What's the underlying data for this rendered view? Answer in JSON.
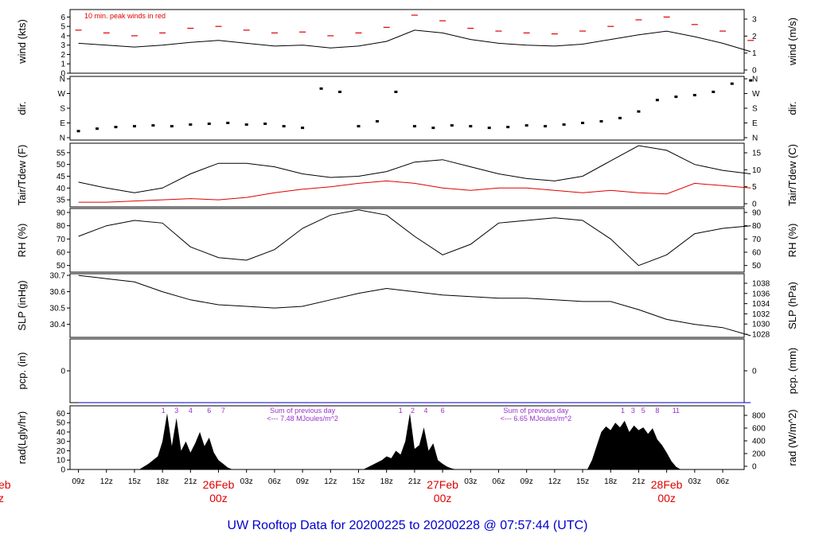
{
  "footer": "UW Rooftop Data for 20200225  to  20200228 @ 07:57:44  (UTC)",
  "colors": {
    "red": "#e00000",
    "blue": "#0000cc",
    "purple": "#9933cc",
    "black": "#000000"
  },
  "chart_data": [
    {
      "id": "wind",
      "type": "line",
      "ylabel_left": "wind (kts)",
      "ylabel_right": "wind (m/s)",
      "left_ticks": [
        "0",
        "1",
        "2",
        "3",
        "4",
        "5",
        "6"
      ],
      "right_ticks": [
        "0",
        "1",
        "2",
        "3"
      ],
      "ylim": [
        0,
        6.8
      ],
      "annotation": "10 min. peak winds in red",
      "series": [
        {
          "name": "wind speed",
          "color": "#000000",
          "x": [
            0,
            3,
            6,
            9,
            12,
            15,
            18,
            21,
            24,
            27,
            30,
            33,
            36,
            39,
            42,
            45,
            48,
            51,
            54,
            57,
            60,
            63,
            66,
            69,
            72
          ],
          "values": [
            3.2,
            3.0,
            2.8,
            3.0,
            3.3,
            3.5,
            3.2,
            2.9,
            3.0,
            2.7,
            2.9,
            3.4,
            4.6,
            4.3,
            3.6,
            3.2,
            3.0,
            2.9,
            3.1,
            3.6,
            4.1,
            4.5,
            3.9,
            3.2,
            2.3
          ]
        },
        {
          "name": "10 min. peak winds",
          "color": "#e00000",
          "x": [
            0,
            3,
            6,
            9,
            12,
            15,
            18,
            21,
            24,
            27,
            30,
            33,
            36,
            39,
            42,
            45,
            48,
            51,
            54,
            57,
            60,
            63,
            66,
            69,
            72
          ],
          "values": [
            4.6,
            4.3,
            4.0,
            4.3,
            4.8,
            5.0,
            4.6,
            4.3,
            4.4,
            4.0,
            4.3,
            4.9,
            6.2,
            5.6,
            4.8,
            4.5,
            4.3,
            4.2,
            4.5,
            5.0,
            5.7,
            6.0,
            5.2,
            4.5,
            3.5
          ]
        }
      ]
    },
    {
      "id": "dir",
      "type": "scatter",
      "ylabel": "dir.",
      "left_ticks": [
        "N",
        "E",
        "S",
        "W",
        "N"
      ],
      "right_ticks": [
        "N",
        "E",
        "S",
        "W",
        "N"
      ],
      "ylim": [
        0,
        360
      ],
      "x": [
        0,
        2,
        4,
        6,
        8,
        10,
        12,
        14,
        16,
        18,
        20,
        22,
        24,
        26,
        28,
        30,
        32,
        34,
        36,
        38,
        40,
        42,
        44,
        46,
        48,
        50,
        52,
        54,
        56,
        58,
        60,
        62,
        64,
        66,
        68,
        70,
        72
      ],
      "values": [
        40,
        55,
        65,
        70,
        75,
        70,
        80,
        85,
        90,
        80,
        85,
        70,
        60,
        300,
        280,
        70,
        100,
        280,
        70,
        60,
        75,
        70,
        60,
        65,
        75,
        70,
        80,
        90,
        100,
        120,
        160,
        230,
        250,
        260,
        280,
        330,
        350
      ]
    },
    {
      "id": "temp",
      "type": "line",
      "ylabel_left": "Tair/Tdew (F)",
      "ylabel_right": "Tair/Tdew (C)",
      "left_ticks": [
        "35",
        "40",
        "45",
        "50",
        "55"
      ],
      "right_ticks": [
        "0",
        "5",
        "10",
        "15"
      ],
      "ylim": [
        32,
        59
      ],
      "series": [
        {
          "name": "Tair",
          "color": "#000000",
          "x": [
            0,
            3,
            6,
            9,
            12,
            15,
            18,
            21,
            24,
            27,
            30,
            33,
            36,
            39,
            42,
            45,
            48,
            51,
            54,
            57,
            60,
            63,
            66,
            69,
            72
          ],
          "values": [
            42.5,
            40,
            38,
            40,
            46,
            50.5,
            50.5,
            49,
            46,
            44.5,
            45,
            47,
            51,
            52,
            49,
            46,
            44,
            43,
            45,
            51.5,
            58,
            56,
            50,
            47.5,
            46
          ]
        },
        {
          "name": "Tdew",
          "color": "#e00000",
          "x": [
            0,
            3,
            6,
            9,
            12,
            15,
            18,
            21,
            24,
            27,
            30,
            33,
            36,
            39,
            42,
            45,
            48,
            51,
            54,
            57,
            60,
            63,
            66,
            69,
            72
          ],
          "values": [
            34,
            34,
            34.5,
            35,
            35.5,
            35,
            36,
            38,
            39.5,
            40.5,
            42,
            43,
            42,
            40,
            39,
            40,
            40,
            39,
            38,
            39,
            38,
            37.5,
            42,
            41,
            40
          ]
        }
      ]
    },
    {
      "id": "rh",
      "type": "line",
      "ylabel_left": "RH (%)",
      "ylabel_right": "RH (%)",
      "left_ticks": [
        "50",
        "60",
        "70",
        "80",
        "90"
      ],
      "right_ticks": [
        "50",
        "60",
        "70",
        "80",
        "90"
      ],
      "ylim": [
        45,
        93
      ],
      "series": [
        {
          "name": "RH",
          "color": "#000000",
          "x": [
            0,
            3,
            6,
            9,
            12,
            15,
            18,
            21,
            24,
            27,
            30,
            33,
            36,
            39,
            42,
            45,
            48,
            51,
            54,
            57,
            60,
            63,
            66,
            69,
            72
          ],
          "values": [
            72,
            80,
            84,
            82,
            64,
            56,
            54,
            62,
            78,
            88,
            92,
            88,
            72,
            58,
            66,
            82,
            84,
            86,
            84,
            70,
            50,
            58,
            74,
            78,
            80
          ]
        }
      ]
    },
    {
      "id": "slp",
      "type": "line",
      "ylabel_left": "SLP (inHg)",
      "ylabel_right": "SLP (hPa)",
      "left_ticks": [
        "30.4",
        "30.5",
        "30.6",
        "30.7"
      ],
      "right_ticks": [
        "1028",
        "1030",
        "1032",
        "1034",
        "1036",
        "1038"
      ],
      "ylim": [
        30.32,
        30.71
      ],
      "series": [
        {
          "name": "SLP",
          "color": "#000000",
          "x": [
            0,
            3,
            6,
            9,
            12,
            15,
            18,
            21,
            24,
            27,
            30,
            33,
            36,
            39,
            42,
            45,
            48,
            51,
            54,
            57,
            60,
            63,
            66,
            69,
            72
          ],
          "values": [
            30.7,
            30.68,
            30.66,
            30.6,
            30.55,
            30.52,
            30.51,
            30.5,
            30.51,
            30.55,
            30.59,
            30.62,
            30.6,
            30.58,
            30.57,
            30.56,
            30.56,
            30.55,
            30.54,
            30.54,
            30.49,
            30.43,
            30.4,
            30.38,
            30.33
          ]
        }
      ]
    },
    {
      "id": "pcp",
      "type": "line",
      "ylabel_left": "pcp. (in)",
      "ylabel_right": "pcp. (mm)",
      "left_ticks": [
        "0"
      ],
      "right_ticks": [
        "0"
      ],
      "ylim": [
        0,
        1
      ],
      "series": [
        {
          "name": "precip",
          "color": "#0000cc",
          "x": [
            0,
            72
          ],
          "values": [
            0,
            0
          ]
        }
      ]
    },
    {
      "id": "rad",
      "type": "area",
      "ylabel_left": "rad(Lgly/hr)",
      "ylabel_right": "rad (W/m^2)",
      "left_ticks": [
        "0",
        "10",
        "20",
        "30",
        "40",
        "50",
        "60"
      ],
      "right_ticks": [
        "0",
        "200",
        "400",
        "600",
        "800"
      ],
      "ylim": [
        0,
        68
      ],
      "x": [
        6.5,
        7.5,
        8.5,
        9,
        9.5,
        10,
        10.5,
        11,
        11.5,
        12,
        12.5,
        13,
        13.5,
        14,
        14.5,
        15,
        15.5,
        16,
        16.5,
        30.5,
        31.5,
        32.5,
        33,
        33.5,
        34,
        34.5,
        35,
        35.5,
        36,
        36.5,
        37,
        37.5,
        38,
        38.5,
        39,
        39.5,
        40,
        40.5,
        54.5,
        55,
        55.5,
        56,
        56.5,
        57,
        57.5,
        58,
        58.5,
        59,
        59.5,
        60,
        60.5,
        61,
        61.5,
        62,
        62.5,
        63,
        63.5,
        64,
        64.5
      ],
      "values": [
        0,
        6,
        14,
        30,
        60,
        25,
        55,
        20,
        30,
        18,
        28,
        40,
        25,
        34,
        18,
        10,
        6,
        2,
        0,
        0,
        5,
        10,
        14,
        12,
        20,
        16,
        30,
        60,
        22,
        26,
        45,
        20,
        28,
        10,
        6,
        3,
        1,
        0,
        0,
        10,
        25,
        40,
        46,
        42,
        50,
        45,
        52,
        40,
        47,
        42,
        45,
        38,
        44,
        32,
        26,
        18,
        9,
        3,
        0
      ],
      "hour_marks": [
        "1",
        "3",
        "4",
        "6",
        "7",
        "1",
        "2",
        "4",
        "6",
        "1",
        "3",
        "5",
        "8",
        "11"
      ],
      "daily_notes": [
        {
          "line1": "Sum of previous day",
          "line2": "<--- 7.48 MJoules/m^2"
        },
        {
          "line1": "Sum of previous day",
          "line2": "<--- 6.65 MJoules/m^2"
        }
      ]
    }
  ],
  "x_axis": {
    "tick_labels": [
      "09z",
      "12z",
      "15z",
      "18z",
      "21z",
      "03z",
      "06z",
      "09z",
      "12z",
      "15z",
      "18z",
      "21z",
      "03z",
      "06z",
      "09z",
      "12z",
      "15z",
      "18z",
      "21z",
      "03z",
      "06z"
    ],
    "tick_hours": [
      0,
      3,
      6,
      9,
      12,
      18,
      21,
      24,
      27,
      30,
      33,
      36,
      42,
      45,
      48,
      51,
      54,
      57,
      60,
      66,
      69
    ],
    "day_labels": [
      {
        "date": "26Feb",
        "time": "00z",
        "hour": 15
      },
      {
        "date": "27Feb",
        "time": "00z",
        "hour": 39
      },
      {
        "date": "28Feb",
        "time": "00z",
        "hour": 63
      }
    ],
    "cutoff_label": {
      "date": "eb",
      "time": "z"
    },
    "range_hours": [
      -0.9,
      71.3
    ]
  }
}
